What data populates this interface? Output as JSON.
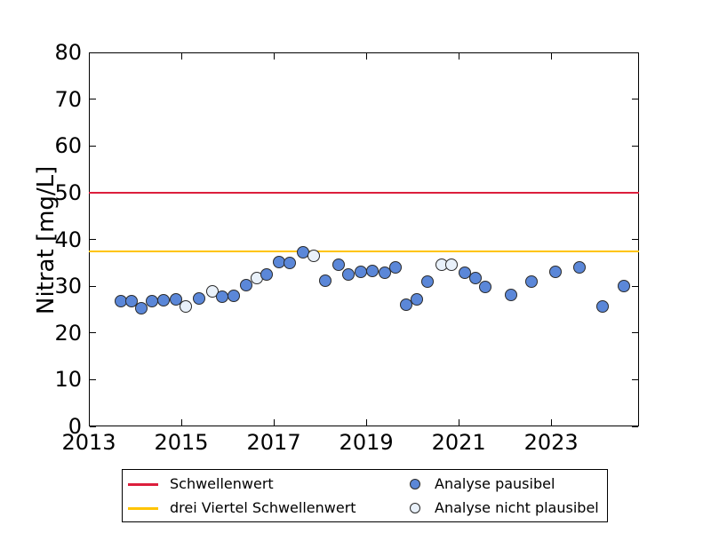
{
  "figure": {
    "ylabel": "Nitrat [mg/L]"
  },
  "chart_data": {
    "type": "scatter",
    "title": "",
    "xlabel": "",
    "ylabel": "Nitrat [mg/L]",
    "xlim": [
      2013,
      2024.9
    ],
    "ylim": [
      0,
      80
    ],
    "xticks": [
      2013,
      2015,
      2017,
      2019,
      2021,
      2023
    ],
    "yticks": [
      0,
      10,
      20,
      30,
      40,
      50,
      60,
      70,
      80
    ],
    "grid": false,
    "legend_position": "below-axes",
    "marker_edge_color": "#2a2a2a",
    "hlines": [
      {
        "name": "Schwellenwert",
        "value": 50,
        "color": "#dc1e3c"
      },
      {
        "name": "drei Viertel Schwellenwert",
        "value": 37.5,
        "color": "#ffc400"
      }
    ],
    "series": [
      {
        "name": "Analyse pausibel",
        "marker_fill": "#5b87d8",
        "points": [
          [
            2013.7,
            26.7
          ],
          [
            2013.93,
            26.8
          ],
          [
            2014.13,
            25.3
          ],
          [
            2014.37,
            26.8
          ],
          [
            2014.62,
            27.0
          ],
          [
            2014.88,
            27.2
          ],
          [
            2015.38,
            27.4
          ],
          [
            2015.88,
            27.8
          ],
          [
            2016.13,
            28.0
          ],
          [
            2016.4,
            30.2
          ],
          [
            2016.85,
            32.5
          ],
          [
            2017.12,
            35.2
          ],
          [
            2017.35,
            34.9
          ],
          [
            2017.63,
            37.3
          ],
          [
            2018.11,
            31.1
          ],
          [
            2018.4,
            34.6
          ],
          [
            2018.62,
            32.4
          ],
          [
            2018.88,
            33.1
          ],
          [
            2019.14,
            33.3
          ],
          [
            2019.4,
            32.8
          ],
          [
            2019.63,
            34.0
          ],
          [
            2019.86,
            26.0
          ],
          [
            2020.1,
            27.2
          ],
          [
            2020.33,
            31.0
          ],
          [
            2021.13,
            32.9
          ],
          [
            2021.36,
            31.7
          ],
          [
            2021.58,
            29.9
          ],
          [
            2022.13,
            28.2
          ],
          [
            2022.58,
            30.9
          ],
          [
            2023.1,
            33.1
          ],
          [
            2023.61,
            34.0
          ],
          [
            2024.11,
            25.6
          ],
          [
            2024.57,
            30.0
          ]
        ]
      },
      {
        "name": "Analyse nicht plausibel",
        "marker_fill": "#e9f1fa",
        "points": [
          [
            2015.1,
            25.7
          ],
          [
            2015.67,
            28.8
          ],
          [
            2016.63,
            31.8
          ],
          [
            2017.87,
            36.5
          ],
          [
            2020.63,
            34.6
          ],
          [
            2020.85,
            34.5
          ]
        ]
      }
    ]
  },
  "legend": {
    "entries": [
      {
        "type": "line",
        "label": "Schwellenwert",
        "color": "#dc1e3c"
      },
      {
        "type": "line",
        "label": "drei Viertel Schwellenwert",
        "color": "#ffc400"
      },
      {
        "type": "marker",
        "label": "Analyse pausibel",
        "color": "#5b87d8"
      },
      {
        "type": "marker",
        "label": "Analyse nicht plausibel",
        "color": "#e9f1fa"
      }
    ]
  }
}
